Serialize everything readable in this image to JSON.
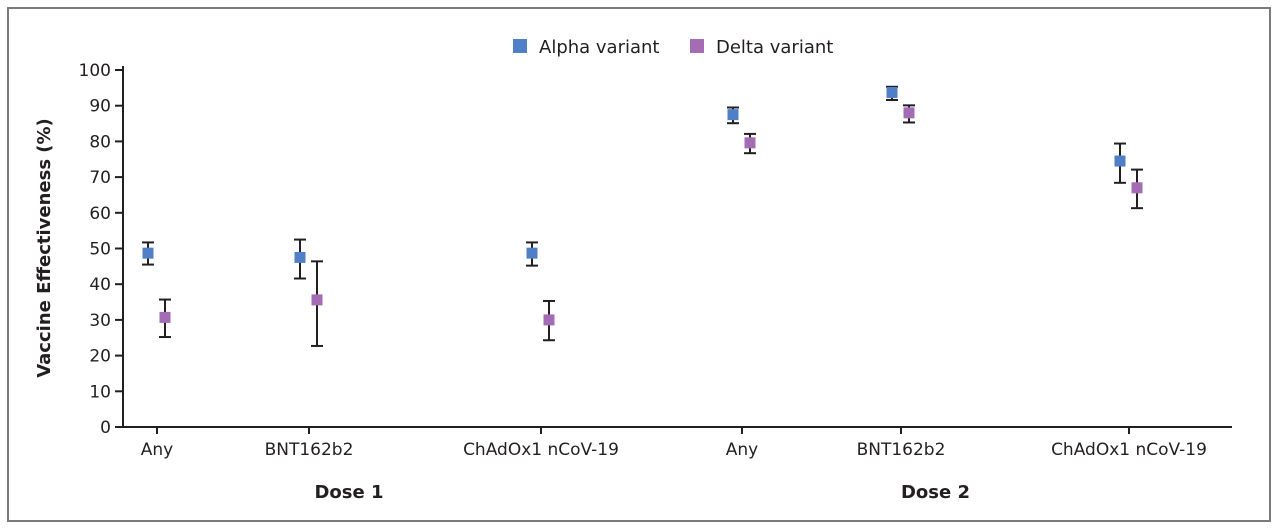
{
  "chart_data": {
    "type": "scatter",
    "ylabel": "Vaccine Effectiveness (%)",
    "ylim": [
      0,
      100
    ],
    "yticks": [
      0,
      10,
      20,
      30,
      40,
      50,
      60,
      70,
      80,
      90,
      100
    ],
    "categories": [
      "Any",
      "BNT162b2",
      "ChAdOx1 nCoV-19",
      "Any",
      "BNT162b2",
      "ChAdOx1 nCoV-19"
    ],
    "groups": [
      {
        "label": "Dose 1",
        "categories": [
          0,
          1,
          2
        ]
      },
      {
        "label": "Dose 2",
        "categories": [
          3,
          4,
          5
        ]
      }
    ],
    "legend_position": "top",
    "series": [
      {
        "name": "Alpha variant",
        "color": "#4f7fc6",
        "values": [
          48.7,
          47.5,
          48.7,
          87.5,
          93.7,
          74.5
        ],
        "lower": [
          45.5,
          41.6,
          45.2,
          85.1,
          91.6,
          68.4
        ],
        "upper": [
          51.7,
          52.5,
          51.7,
          89.5,
          95.3,
          79.4
        ]
      },
      {
        "name": "Delta variant",
        "color": "#a46cb5",
        "values": [
          30.7,
          35.6,
          30.0,
          79.6,
          88.0,
          67.0
        ],
        "lower": [
          25.2,
          22.7,
          24.3,
          76.7,
          85.3,
          61.3
        ],
        "upper": [
          35.7,
          46.4,
          35.3,
          82.1,
          90.1,
          72.1
        ]
      }
    ],
    "grid": false
  }
}
